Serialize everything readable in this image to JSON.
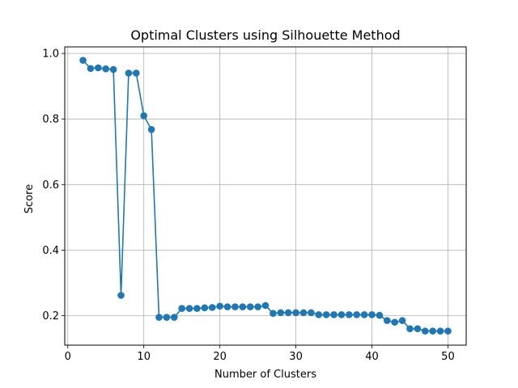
{
  "chart_data": {
    "type": "line",
    "title": "Optimal Clusters using Silhouette Method",
    "xlabel": "Number of Clusters",
    "ylabel": "Score",
    "xlim": [
      -0.4,
      52.4
    ],
    "ylim": [
      0.11,
      1.02
    ],
    "xticks": [
      0,
      10,
      20,
      30,
      40,
      50
    ],
    "yticks": [
      0.2,
      0.4,
      0.6,
      0.8,
      1.0
    ],
    "xtick_labels": [
      "0",
      "10",
      "20",
      "30",
      "40",
      "50"
    ],
    "ytick_labels": [
      "0.2",
      "0.4",
      "0.6",
      "0.8",
      "1.0"
    ],
    "grid": true,
    "color": "#1f77b4",
    "series": [
      {
        "x": [
          2,
          3,
          4,
          5,
          6,
          7,
          8,
          9,
          10,
          11,
          12,
          13,
          14,
          15,
          16,
          17,
          18,
          19,
          20,
          21,
          22,
          23,
          24,
          25,
          26,
          27,
          28,
          29,
          30,
          31,
          32,
          33,
          34,
          35,
          36,
          37,
          38,
          39,
          40,
          41,
          42,
          43,
          44,
          45,
          46,
          47,
          48,
          49,
          50
        ],
        "values": [
          0.979,
          0.954,
          0.956,
          0.953,
          0.951,
          0.262,
          0.94,
          0.94,
          0.81,
          0.768,
          0.195,
          0.195,
          0.195,
          0.222,
          0.222,
          0.222,
          0.224,
          0.225,
          0.229,
          0.227,
          0.227,
          0.227,
          0.227,
          0.227,
          0.231,
          0.207,
          0.209,
          0.209,
          0.209,
          0.209,
          0.209,
          0.203,
          0.203,
          0.203,
          0.203,
          0.203,
          0.203,
          0.203,
          0.203,
          0.201,
          0.185,
          0.18,
          0.185,
          0.16,
          0.16,
          0.153,
          0.153,
          0.153,
          0.153
        ]
      }
    ]
  }
}
